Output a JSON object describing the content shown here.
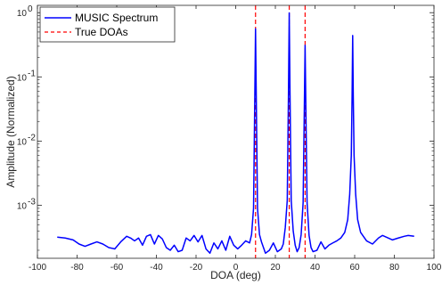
{
  "chart_data": {
    "type": "line",
    "title": "",
    "xlabel": "DOA (deg)",
    "ylabel": "Amplitude (Normalized)",
    "xlim": [
      -100,
      100
    ],
    "ylim": [
      0.00015,
      1.3
    ],
    "yscale": "log",
    "grid": false,
    "legend_position": "top-left",
    "x_ticks": [
      -100,
      -80,
      -60,
      -40,
      -20,
      0,
      20,
      40,
      60,
      80,
      100
    ],
    "y_ticks": [
      {
        "value": 0.001,
        "base": "10",
        "exp": "-3"
      },
      {
        "value": 0.01,
        "base": "10",
        "exp": "-2"
      },
      {
        "value": 0.1,
        "base": "10",
        "exp": "-1"
      },
      {
        "value": 1,
        "base": "10",
        "exp": "0"
      }
    ],
    "series": [
      {
        "name": "MUSIC Spectrum",
        "color": "#0000ff",
        "style": "solid",
        "points": [
          [
            -90,
            0.00032
          ],
          [
            -86,
            0.00031
          ],
          [
            -82,
            0.00029
          ],
          [
            -79,
            0.00025
          ],
          [
            -76,
            0.00023
          ],
          [
            -73,
            0.00025
          ],
          [
            -70,
            0.00027
          ],
          [
            -67,
            0.00025
          ],
          [
            -64,
            0.00022
          ],
          [
            -61,
            0.00021
          ],
          [
            -58,
            0.00027
          ],
          [
            -55,
            0.00033
          ],
          [
            -53,
            0.00031
          ],
          [
            -51,
            0.00028
          ],
          [
            -49,
            0.00031
          ],
          [
            -47,
            0.00024
          ],
          [
            -45,
            0.00033
          ],
          [
            -43,
            0.00035
          ],
          [
            -41,
            0.00025
          ],
          [
            -39,
            0.00034
          ],
          [
            -37,
            0.0003
          ],
          [
            -35,
            0.00022
          ],
          [
            -33,
            0.0002
          ],
          [
            -31,
            0.00024
          ],
          [
            -29,
            0.00019
          ],
          [
            -27,
            0.0002
          ],
          [
            -25,
            0.00031
          ],
          [
            -23,
            0.00028
          ],
          [
            -21,
            0.00034
          ],
          [
            -19,
            0.00027
          ],
          [
            -17,
            0.00034
          ],
          [
            -15,
            0.00021
          ],
          [
            -13,
            0.00018
          ],
          [
            -11,
            0.00026
          ],
          [
            -9,
            0.00021
          ],
          [
            -7,
            0.00028
          ],
          [
            -5,
            0.0002
          ],
          [
            -3,
            0.00033
          ],
          [
            -1,
            0.00024
          ],
          [
            1,
            0.00021
          ],
          [
            3,
            0.00024
          ],
          [
            5,
            0.00028
          ],
          [
            7,
            0.00026
          ],
          [
            8,
            0.00035
          ],
          [
            9,
            0.0009
          ],
          [
            9.6,
            0.04
          ],
          [
            10,
            0.56
          ],
          [
            10.4,
            0.04
          ],
          [
            11,
            0.0009
          ],
          [
            12,
            0.00035
          ],
          [
            13,
            0.00027
          ],
          [
            15,
            0.00018
          ],
          [
            17,
            0.0002
          ],
          [
            19,
            0.00026
          ],
          [
            21,
            0.00019
          ],
          [
            23,
            0.00021
          ],
          [
            24,
            0.00025
          ],
          [
            25,
            0.00045
          ],
          [
            26,
            0.0012
          ],
          [
            26.6,
            0.05
          ],
          [
            27,
            0.99
          ],
          [
            27.4,
            0.05
          ],
          [
            28,
            0.0012
          ],
          [
            29,
            0.0004
          ],
          [
            30,
            0.00024
          ],
          [
            31,
            0.00019
          ],
          [
            32,
            0.00022
          ],
          [
            33,
            0.00035
          ],
          [
            34,
            0.0011
          ],
          [
            34.6,
            0.03
          ],
          [
            35,
            0.31
          ],
          [
            35.4,
            0.03
          ],
          [
            36,
            0.0011
          ],
          [
            37,
            0.00034
          ],
          [
            38,
            0.00022
          ],
          [
            39,
            0.00019
          ],
          [
            41,
            0.0002
          ],
          [
            43,
            0.00027
          ],
          [
            45,
            0.00021
          ],
          [
            47,
            0.00024
          ],
          [
            49,
            0.00026
          ],
          [
            51,
            0.00028
          ],
          [
            53,
            0.00031
          ],
          [
            55,
            0.00038
          ],
          [
            56.5,
            0.0006
          ],
          [
            57.5,
            0.0015
          ],
          [
            58.3,
            0.006
          ],
          [
            58.7,
            0.05
          ],
          [
            59,
            0.44
          ],
          [
            59.3,
            0.05
          ],
          [
            59.7,
            0.006
          ],
          [
            60.5,
            0.0015
          ],
          [
            61.5,
            0.0006
          ],
          [
            63,
            0.00038
          ],
          [
            66,
            0.00028
          ],
          [
            69,
            0.00025
          ],
          [
            72,
            0.00031
          ],
          [
            74,
            0.00034
          ],
          [
            76,
            0.00032
          ],
          [
            79,
            0.00029
          ],
          [
            82,
            0.00031
          ],
          [
            85,
            0.00033
          ],
          [
            87,
            0.00034
          ],
          [
            90,
            0.00033
          ]
        ]
      },
      {
        "name": "True DOAs",
        "color": "#ff0000",
        "style": "dashed",
        "x": [
          10,
          27,
          35
        ]
      }
    ]
  }
}
